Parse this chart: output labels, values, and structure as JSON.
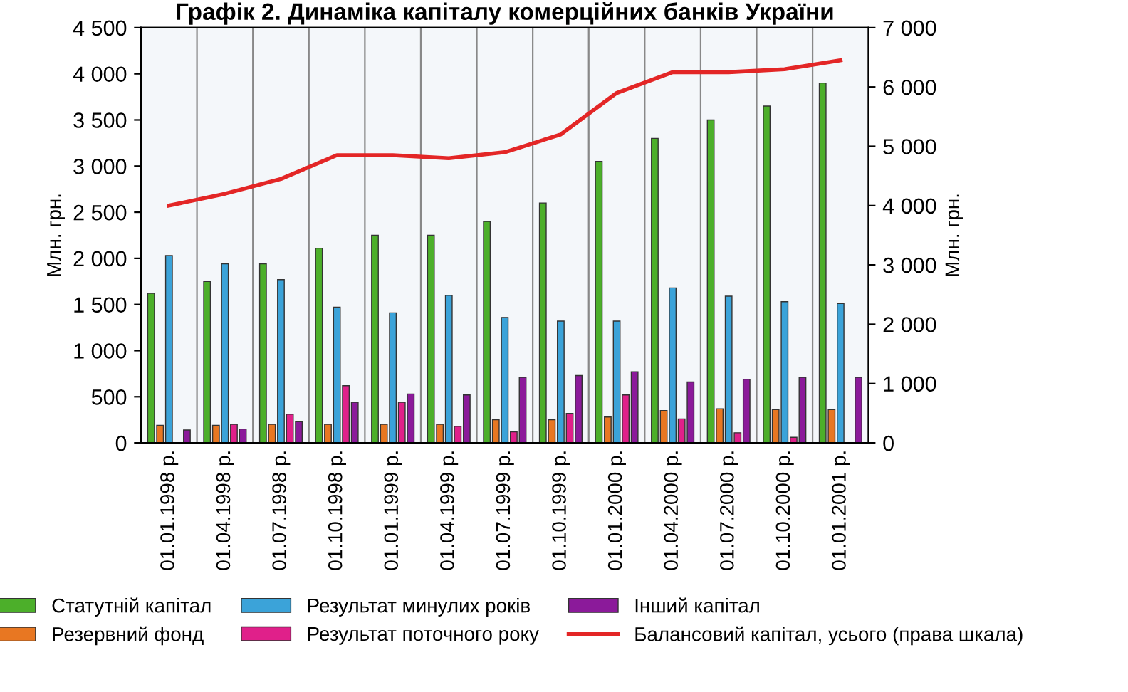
{
  "chart_data": {
    "type": "bar",
    "title": "Графік 2. Динаміка капіталу комерційних банків України",
    "ylabel": "Млн. грн.",
    "y2label": "Млн. грн.",
    "categories": [
      "01.01.1998 р.",
      "01.04.1998 р.",
      "01.07.1998 р.",
      "01.10.1998 р.",
      "01.01.1999 р.",
      "01.04.1999 р.",
      "01.07.1999 р.",
      "01.10.1999 р.",
      "01.01.2000 р.",
      "01.04.2000 р.",
      "01.07.2000 р.",
      "01.10.2000 р.",
      "01.01.2001 р."
    ],
    "series": [
      {
        "name": "Статутній капітал",
        "color": "#4caf2a",
        "values": [
          1620,
          1750,
          1940,
          2110,
          2250,
          2250,
          2400,
          2600,
          3050,
          3300,
          3500,
          3650,
          3900
        ]
      },
      {
        "name": "Резервний фонд",
        "color": "#e87722",
        "values": [
          190,
          190,
          200,
          200,
          200,
          200,
          250,
          250,
          280,
          350,
          370,
          360,
          360
        ]
      },
      {
        "name": "Результат минулих років",
        "color": "#3ba3d9",
        "values": [
          2030,
          1940,
          1770,
          1470,
          1410,
          1600,
          1360,
          1320,
          1320,
          1680,
          1590,
          1530,
          1510
        ]
      },
      {
        "name": "Результат поточного року",
        "color": "#e0208a",
        "values": [
          null,
          200,
          310,
          620,
          440,
          180,
          120,
          320,
          520,
          260,
          110,
          60,
          null
        ]
      },
      {
        "name": "Інший капітал",
        "color": "#8b1a9a",
        "values": [
          140,
          150,
          230,
          440,
          530,
          520,
          710,
          730,
          770,
          660,
          690,
          710,
          710
        ]
      },
      {
        "name": "Балансовий капітал, усього (права шкала)",
        "color": "#e32626",
        "type": "line",
        "axis": "y2",
        "values": [
          4000,
          4200,
          4450,
          4850,
          4850,
          4800,
          4900,
          5200,
          5900,
          6250,
          6250,
          6300,
          6450
        ]
      }
    ],
    "ylim": [
      0,
      4500
    ],
    "yticks": [
      {
        "value": 0,
        "label": "0"
      },
      {
        "value": 500,
        "label": "500"
      },
      {
        "value": 1000,
        "label": "1 000"
      },
      {
        "value": 1500,
        "label": "1 500"
      },
      {
        "value": 2000,
        "label": "2 000"
      },
      {
        "value": 2500,
        "label": "2 500"
      },
      {
        "value": 3000,
        "label": "3 000"
      },
      {
        "value": 3500,
        "label": "3 500"
      },
      {
        "value": 4000,
        "label": "4 000"
      },
      {
        "value": 4500,
        "label": "4 500"
      }
    ],
    "y2lim": [
      0,
      7000
    ],
    "y2ticks": [
      {
        "value": 0,
        "label": "0"
      },
      {
        "value": 1000,
        "label": "1 000"
      },
      {
        "value": 2000,
        "label": "2 000"
      },
      {
        "value": 3000,
        "label": "3 000"
      },
      {
        "value": 4000,
        "label": "4 000"
      },
      {
        "value": 5000,
        "label": "5 000"
      },
      {
        "value": 6000,
        "label": "6 000"
      },
      {
        "value": 7000,
        "label": "7 000"
      }
    ],
    "grid": "x",
    "legend": "bottom"
  }
}
